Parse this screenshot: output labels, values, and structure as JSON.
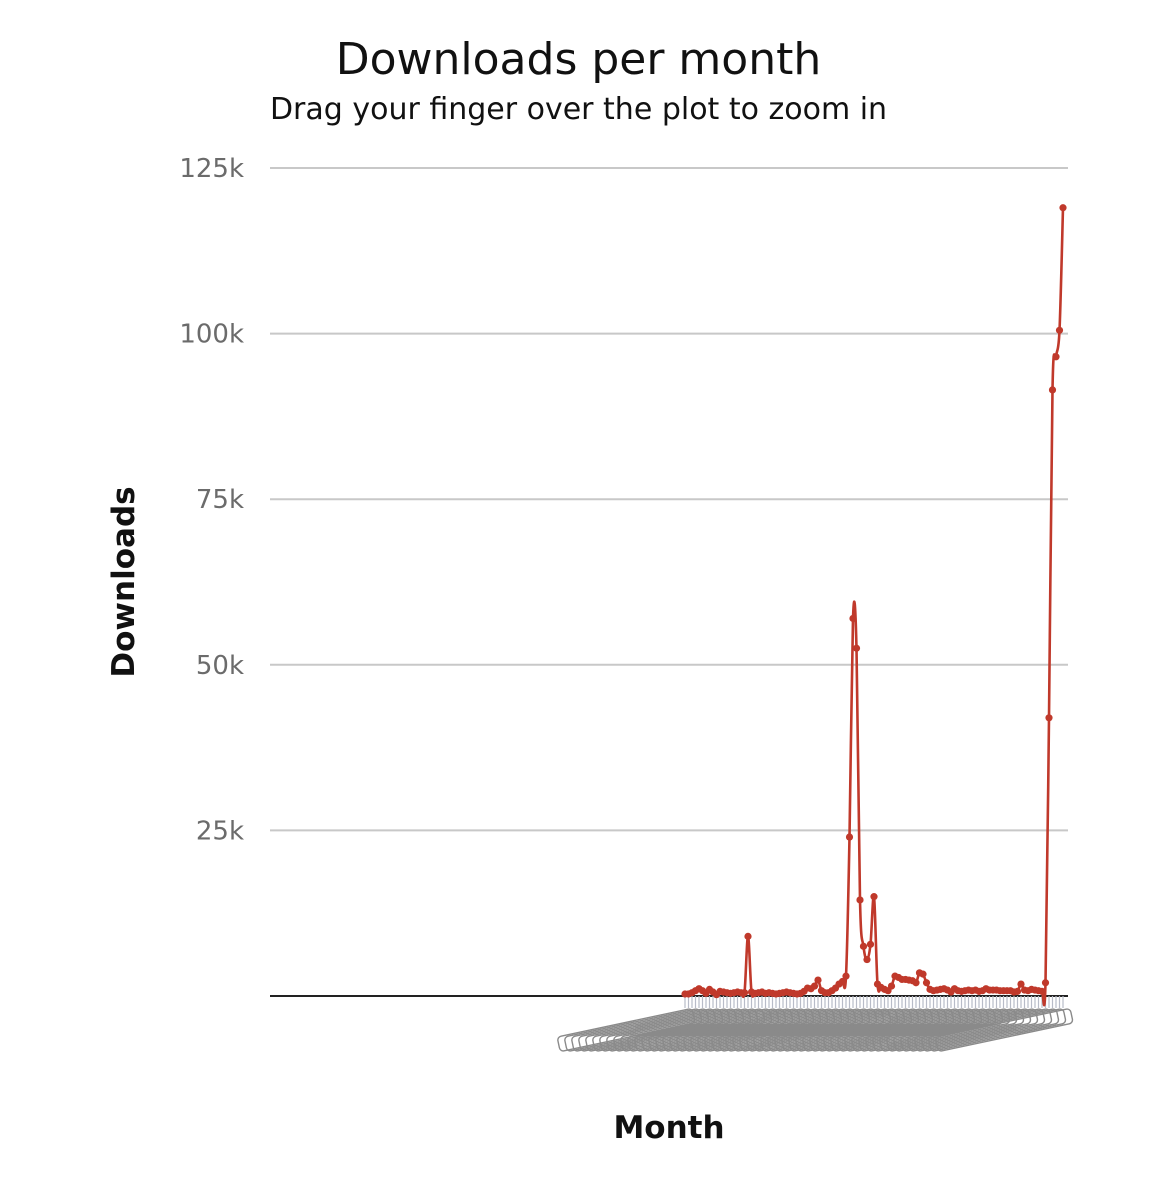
{
  "title": "Downloads per month",
  "subtitle": "Drag your finger over the plot to zoom in",
  "chart_data": {
    "type": "line",
    "title": "Downloads per month",
    "subtitle": "Drag your finger over the plot to zoom in",
    "xlabel": "Month",
    "ylabel": "Downloads",
    "ylim": [
      0,
      125000
    ],
    "yticks": [
      25000,
      50000,
      75000,
      100000,
      125000
    ],
    "ytick_labels": [
      "25k",
      "50k",
      "75k",
      "100k",
      "125k"
    ],
    "grid": true,
    "smooth": true,
    "colors": {
      "line": "#c0392b",
      "grid": "#c8c8c8",
      "axis": "#222222"
    },
    "x_tick_labels_legible": false,
    "series": [
      {
        "values": [
          300,
          300,
          500,
          800,
          1100,
          800,
          400,
          1000,
          600,
          200,
          700,
          600,
          500,
          400,
          500,
          600,
          500,
          500,
          9000,
          600,
          400,
          500,
          600,
          400,
          500,
          400,
          300,
          400,
          500,
          600,
          500,
          400,
          300,
          400,
          700,
          1200,
          1100,
          1500,
          2400,
          800,
          500,
          500,
          800,
          1200,
          1800,
          2200,
          3000,
          24000,
          57000,
          52500,
          14500,
          7500,
          5500,
          7800,
          15000,
          1800,
          1300,
          1000,
          800,
          1500,
          3000,
          2800,
          2500,
          2500,
          2400,
          2300,
          2000,
          3500,
          3300,
          2000,
          1000,
          800,
          900,
          1000,
          1100,
          900,
          600,
          1100,
          800,
          700,
          800,
          900,
          800,
          900,
          700,
          800,
          1100,
          900,
          900,
          900,
          800,
          800,
          800,
          800,
          600,
          700,
          1800,
          900,
          800,
          1000,
          900,
          800,
          700,
          2000,
          42000,
          91500,
          96500,
          100500,
          119000
        ]
      }
    ]
  }
}
